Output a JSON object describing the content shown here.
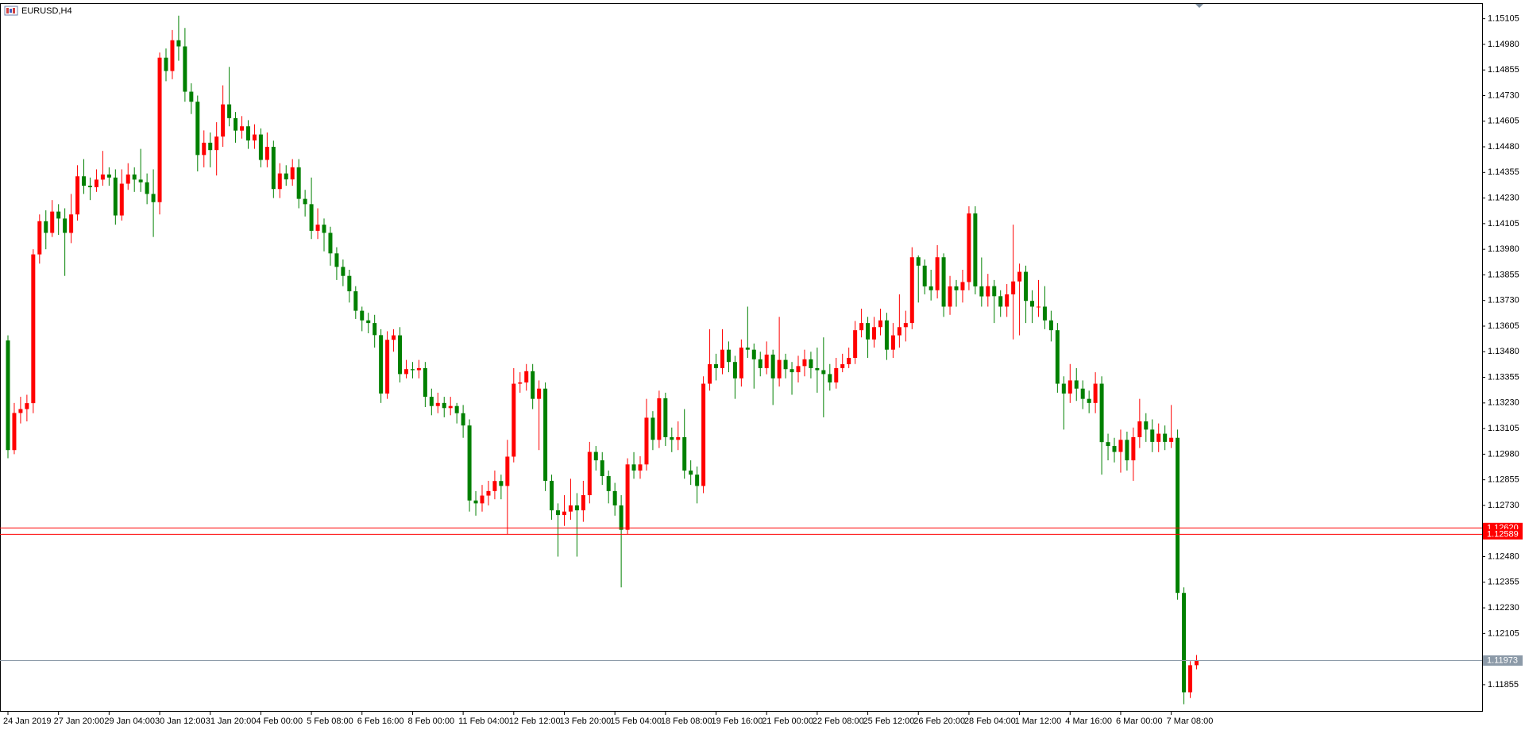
{
  "chart_data": {
    "type": "candlestick",
    "title": "EURUSD,H4",
    "up_color": "#ff0000",
    "down_color": "#008000",
    "ylim": [
      1.11723,
      1.15181
    ],
    "yticks": [
      1.15105,
      {
        "value": 1.1498,
        "label": "1.14980"
      },
      1.14855,
      {
        "value": 1.1473,
        "label": "1.14730"
      },
      1.14605,
      {
        "value": 1.1448,
        "label": "1.14480"
      },
      1.14355,
      {
        "value": 1.1423,
        "label": "1.14230"
      },
      1.14105,
      {
        "value": 1.1398,
        "label": "1.13980"
      },
      1.13855,
      {
        "value": 1.1373,
        "label": "1.13730"
      },
      1.13605,
      {
        "value": 1.1348,
        "label": "1.13480"
      },
      1.13355,
      {
        "value": 1.1323,
        "label": "1.13230"
      },
      1.13105,
      {
        "value": 1.1298,
        "label": "1.12980"
      },
      1.12855,
      {
        "value": 1.1273,
        "label": "1.12730"
      },
      {
        "value": 1.1248,
        "label": "1.12480"
      },
      1.12355,
      {
        "value": 1.1223,
        "label": "1.12230"
      },
      1.12105,
      1.11855
    ],
    "hlines": [
      {
        "value": 1.1262,
        "label": "1.12620",
        "color": "#ff0000"
      },
      {
        "value": 1.12589,
        "label": "1.12589",
        "color": "#ff0000"
      },
      {
        "value": 1.11973,
        "label": "1.11973",
        "color": "#8c9aa8"
      }
    ],
    "categories": [
      "24 Jan 2019",
      null,
      null,
      null,
      null,
      null,
      null,
      null,
      "27 Jan 20:00",
      null,
      null,
      null,
      null,
      null,
      null,
      null,
      "29 Jan 04:00",
      null,
      null,
      null,
      null,
      null,
      null,
      null,
      "30 Jan 12:00",
      null,
      null,
      null,
      null,
      null,
      null,
      null,
      "31 Jan 20:00",
      null,
      null,
      null,
      null,
      null,
      null,
      null,
      "4 Feb 00:00",
      null,
      null,
      null,
      null,
      null,
      null,
      null,
      "5 Feb 08:00",
      null,
      null,
      null,
      null,
      null,
      null,
      null,
      "6 Feb 16:00",
      null,
      null,
      null,
      null,
      null,
      null,
      null,
      "8 Feb 00:00",
      null,
      null,
      null,
      null,
      null,
      null,
      null,
      "11 Feb 04:00",
      null,
      null,
      null,
      null,
      null,
      null,
      null,
      "12 Feb 12:00",
      null,
      null,
      null,
      null,
      null,
      null,
      null,
      "13 Feb 20:00",
      null,
      null,
      null,
      null,
      null,
      null,
      null,
      "15 Feb 04:00",
      null,
      null,
      null,
      null,
      null,
      null,
      null,
      "18 Feb 08:00",
      null,
      null,
      null,
      null,
      null,
      null,
      null,
      "19 Feb 16:00",
      null,
      null,
      null,
      null,
      null,
      null,
      null,
      "21 Feb 00:00",
      null,
      null,
      null,
      null,
      null,
      null,
      null,
      "22 Feb 08:00",
      null,
      null,
      null,
      null,
      null,
      null,
      null,
      "25 Feb 12:00",
      null,
      null,
      null,
      null,
      null,
      null,
      null,
      "26 Feb 20:00",
      null,
      null,
      null,
      null,
      null,
      null,
      null,
      "28 Feb 04:00",
      null,
      null,
      null,
      null,
      null,
      null,
      null,
      "1 Mar 12:00",
      null,
      null,
      null,
      null,
      null,
      null,
      null,
      "4 Mar 16:00",
      null,
      null,
      null,
      null,
      null,
      null,
      null,
      "6 Mar 00:00",
      null,
      null,
      null,
      null,
      null,
      null,
      null,
      "7 Mar 08:00",
      null,
      null,
      null,
      null
    ],
    "open": [
      1.13535,
      1.13,
      1.13181,
      1.132,
      1.13229,
      1.13955,
      1.14117,
      1.1406,
      1.14164,
      1.1413,
      1.1406,
      1.1415,
      1.14336,
      1.1429,
      1.14283,
      1.1432,
      1.14345,
      1.1433,
      1.14145,
      1.143,
      1.14345,
      1.1432,
      1.14307,
      1.1425,
      1.1421,
      1.14915,
      1.1485,
      1.15,
      1.1497,
      1.14749,
      1.147,
      1.1444,
      1.145,
      1.14464,
      1.1453,
      1.14687,
      1.1462,
      1.14559,
      1.1458,
      1.14511,
      1.1454,
      1.14416,
      1.1448,
      1.14274,
      1.1435,
      1.14321,
      1.1438,
      1.14226,
      1.142,
      1.1407,
      1.141,
      1.1406,
      1.1396,
      1.13894,
      1.1385,
      1.13775,
      1.1368,
      1.13633,
      1.1362,
      1.13561,
      1.13276,
      1.13538,
      1.1356,
      1.13371,
      1.13395,
      1.1339,
      1.134,
      1.1326,
      1.13215,
      1.1323,
      1.13205,
      1.13215,
      1.1318,
      1.1312,
      1.12754,
      1.1274,
      1.12778,
      1.128,
      1.12849,
      1.12825,
      1.12968,
      1.13324,
      1.1333,
      1.13385,
      1.1325,
      1.133,
      1.1285,
      1.12706,
      1.12683,
      1.127,
      1.1273,
      1.12706,
      1.1278,
      1.12991,
      1.1295,
      1.12873,
      1.128,
      1.1273,
      1.12611,
      1.1293,
      1.129,
      1.1293,
      1.13158,
      1.1305,
      1.13253,
      1.13063,
      1.1305,
      1.13063,
      1.129,
      1.1288,
      1.12825,
      1.13324,
      1.13419,
      1.134,
      1.1349,
      1.1343,
      1.1335,
      1.135,
      1.1349,
      1.13443,
      1.134,
      1.13466,
      1.1335,
      1.1344,
      1.13395,
      1.1338,
      1.1341,
      1.13443,
      1.134,
      1.1339,
      1.13371,
      1.1333,
      1.134,
      1.13419,
      1.1345,
      1.13585,
      1.1362,
      1.1354,
      1.136,
      1.13633,
      1.1349,
      1.1356,
      1.136,
      1.1362,
      1.13941,
      1.139,
      1.13799,
      1.1378,
      1.13941,
      1.137,
      1.13799,
      1.1378,
      1.1382,
      1.14155,
      1.13799,
      1.1375,
      1.138,
      1.13751,
      1.137,
      1.1376,
      1.13823,
      1.1387,
      1.13728,
      1.137,
      1.137,
      1.13633,
      1.13585,
      1.13324,
      1.13276,
      1.1334,
      1.133,
      1.1325,
      1.1323,
      1.13324,
      1.13039,
      1.1302,
      1.12991,
      1.1305,
      1.1295,
      1.13063,
      1.1314,
      1.131,
      1.1304,
      1.1308,
      1.1304,
      1.1306,
      1.12303,
      1.11818,
      1.1195
    ],
    "high": [
      1.1356,
      1.1323,
      1.1326,
      1.1327,
      1.1398,
      1.1415,
      1.1417,
      1.1422,
      1.142,
      1.1418,
      1.1425,
      1.1439,
      1.1442,
      1.1433,
      1.1437,
      1.1446,
      1.1438,
      1.1437,
      1.1437,
      1.144,
      1.1438,
      1.1447,
      1.1435,
      1.1437,
      1.1494,
      1.1496,
      1.1505,
      1.1512,
      1.1506,
      1.1479,
      1.1473,
      1.1456,
      1.1455,
      1.146,
      1.1478,
      1.1487,
      1.1465,
      1.1463,
      1.1461,
      1.1459,
      1.1457,
      1.1455,
      1.1451,
      1.144,
      1.1439,
      1.1442,
      1.1442,
      1.1427,
      1.1433,
      1.1418,
      1.1413,
      1.1409,
      1.1399,
      1.1393,
      1.1388,
      1.138,
      1.137,
      1.1367,
      1.1366,
      1.1359,
      1.1358,
      1.1359,
      1.136,
      1.1344,
      1.1343,
      1.1344,
      1.1343,
      1.133,
      1.1328,
      1.1326,
      1.1326,
      1.1323,
      1.1322,
      1.1315,
      1.128,
      1.1283,
      1.1285,
      1.129,
      1.1288,
      1.1305,
      1.134,
      1.1338,
      1.1342,
      1.1342,
      1.1334,
      1.1333,
      1.1288,
      1.1274,
      1.1278,
      1.1286,
      1.1279,
      1.1285,
      1.1304,
      1.1302,
      1.1299,
      1.129,
      1.1284,
      1.1278,
      1.1296,
      1.1299,
      1.1297,
      1.1325,
      1.1319,
      1.1329,
      1.1328,
      1.1311,
      1.1314,
      1.132,
      1.1295,
      1.1292,
      1.1336,
      1.1359,
      1.1347,
      1.1359,
      1.1353,
      1.1346,
      1.1354,
      1.137,
      1.1352,
      1.1348,
      1.1353,
      1.1349,
      1.1365,
      1.1347,
      1.1343,
      1.1346,
      1.1349,
      1.1348,
      1.135,
      1.1355,
      1.1342,
      1.1345,
      1.1347,
      1.135,
      1.1363,
      1.1369,
      1.1365,
      1.1365,
      1.1369,
      1.1367,
      1.1362,
      1.1376,
      1.1368,
      1.1399,
      1.1395,
      1.1393,
      1.1388,
      1.14,
      1.1396,
      1.1385,
      1.1383,
      1.1388,
      1.1419,
      1.1419,
      1.1394,
      1.1386,
      1.1383,
      1.1378,
      1.1381,
      1.141,
      1.1391,
      1.139,
      1.1378,
      1.1383,
      1.138,
      1.1368,
      1.1362,
      1.1336,
      1.1342,
      1.134,
      1.1334,
      1.1329,
      1.1338,
      1.1336,
      1.1308,
      1.1306,
      1.131,
      1.1309,
      1.1311,
      1.1325,
      1.1318,
      1.1315,
      1.1313,
      1.1312,
      1.1322,
      1.131,
      1.1233,
      1.1197,
      1.12
    ],
    "low": [
      1.1296,
      1.1298,
      1.1313,
      1.1314,
      1.1318,
      1.1391,
      1.1398,
      1.1404,
      1.1405,
      1.1385,
      1.1401,
      1.1412,
      1.1425,
      1.1422,
      1.1426,
      1.1429,
      1.1429,
      1.141,
      1.1412,
      1.1427,
      1.1426,
      1.1426,
      1.142,
      1.1404,
      1.1415,
      1.148,
      1.1481,
      1.149,
      1.147,
      1.1464,
      1.1436,
      1.1438,
      1.1438,
      1.1434,
      1.1448,
      1.1458,
      1.145,
      1.1452,
      1.1447,
      1.1447,
      1.1438,
      1.1438,
      1.1423,
      1.1423,
      1.1429,
      1.1429,
      1.1418,
      1.1414,
      1.1403,
      1.1403,
      1.1397,
      1.139,
      1.1383,
      1.138,
      1.1372,
      1.1364,
      1.1358,
      1.1357,
      1.135,
      1.1323,
      1.1325,
      1.1348,
      1.1333,
      1.1335,
      1.1335,
      1.1335,
      1.1321,
      1.1317,
      1.1318,
      1.1316,
      1.1317,
      1.1313,
      1.1306,
      1.127,
      1.1268,
      1.127,
      1.1273,
      1.1276,
      1.1276,
      1.1259,
      1.1294,
      1.1328,
      1.1329,
      1.132,
      1.13,
      1.128,
      1.1266,
      1.1248,
      1.1263,
      1.1266,
      1.1248,
      1.1265,
      1.1274,
      1.129,
      1.1283,
      1.1274,
      1.1268,
      1.1233,
      1.1259,
      1.1286,
      1.1286,
      1.129,
      1.13,
      1.1301,
      1.1302,
      1.1299,
      1.13,
      1.1286,
      1.1283,
      1.1274,
      1.1279,
      1.1329,
      1.1334,
      1.1337,
      1.1338,
      1.1325,
      1.1331,
      1.1345,
      1.133,
      1.1336,
      1.1337,
      1.1322,
      1.1331,
      1.1335,
      1.1327,
      1.1333,
      1.1336,
      1.1335,
      1.1328,
      1.1316,
      1.1329,
      1.133,
      1.1338,
      1.134,
      1.1342,
      1.1355,
      1.1345,
      1.135,
      1.1356,
      1.1344,
      1.1345,
      1.135,
      1.1353,
      1.1359,
      1.1372,
      1.1376,
      1.1373,
      1.1374,
      1.1365,
      1.1366,
      1.137,
      1.1372,
      1.1378,
      1.1376,
      1.137,
      1.137,
      1.1362,
      1.1365,
      1.1365,
      1.1354,
      1.1356,
      1.1362,
      1.1362,
      1.1365,
      1.1359,
      1.1353,
      1.1328,
      1.131,
      1.1323,
      1.1324,
      1.132,
      1.1318,
      1.1318,
      1.1288,
      1.1295,
      1.1294,
      1.1289,
      1.129,
      1.1285,
      1.1301,
      1.1304,
      1.1299,
      1.1299,
      1.13,
      1.1301,
      1.1227,
      1.1176,
      1.1179,
      1.1193
    ],
    "close": [
      1.13,
      1.13181,
      1.132,
      1.13229,
      1.13955,
      1.14117,
      1.1406,
      1.14164,
      1.1413,
      1.1406,
      1.1415,
      1.14336,
      1.1429,
      1.14283,
      1.1432,
      1.14345,
      1.1433,
      1.14145,
      1.143,
      1.14345,
      1.1432,
      1.14307,
      1.1425,
      1.1421,
      1.14915,
      1.1485,
      1.15,
      1.1497,
      1.14749,
      1.147,
      1.1444,
      1.145,
      1.14464,
      1.1453,
      1.14687,
      1.1462,
      1.14559,
      1.1458,
      1.14511,
      1.1454,
      1.14416,
      1.1448,
      1.14274,
      1.1435,
      1.14321,
      1.1438,
      1.14226,
      1.142,
      1.1407,
      1.141,
      1.1406,
      1.1396,
      1.13894,
      1.1385,
      1.13775,
      1.1368,
      1.13633,
      1.1362,
      1.13561,
      1.13276,
      1.13538,
      1.1356,
      1.13371,
      1.13395,
      1.1339,
      1.134,
      1.1326,
      1.13215,
      1.1323,
      1.13205,
      1.13215,
      1.1318,
      1.1312,
      1.12754,
      1.1274,
      1.12778,
      1.128,
      1.12849,
      1.12825,
      1.12968,
      1.13324,
      1.1333,
      1.13385,
      1.1325,
      1.133,
      1.1285,
      1.12706,
      1.12683,
      1.127,
      1.1273,
      1.12706,
      1.1278,
      1.12991,
      1.1295,
      1.12873,
      1.128,
      1.1273,
      1.12611,
      1.1293,
      1.129,
      1.1293,
      1.13158,
      1.1305,
      1.13253,
      1.13063,
      1.1305,
      1.13063,
      1.129,
      1.1288,
      1.12825,
      1.13324,
      1.13419,
      1.134,
      1.1349,
      1.1343,
      1.1335,
      1.135,
      1.1349,
      1.13443,
      1.134,
      1.13466,
      1.1335,
      1.1344,
      1.13395,
      1.1338,
      1.1341,
      1.13443,
      1.134,
      1.1339,
      1.13371,
      1.1333,
      1.134,
      1.13419,
      1.1345,
      1.13585,
      1.1362,
      1.1354,
      1.136,
      1.13633,
      1.1349,
      1.1356,
      1.136,
      1.1362,
      1.13941,
      1.139,
      1.13799,
      1.1378,
      1.13941,
      1.137,
      1.13799,
      1.1378,
      1.1382,
      1.14155,
      1.13799,
      1.1375,
      1.138,
      1.13751,
      1.137,
      1.1376,
      1.13823,
      1.1387,
      1.13728,
      1.137,
      1.137,
      1.13633,
      1.13585,
      1.13324,
      1.13276,
      1.1334,
      1.133,
      1.1325,
      1.1323,
      1.13324,
      1.13039,
      1.1302,
      1.12991,
      1.1305,
      1.1295,
      1.13063,
      1.1314,
      1.131,
      1.1304,
      1.1308,
      1.1304,
      1.1306,
      1.12303,
      1.11818,
      1.1195,
      1.11973
    ]
  }
}
